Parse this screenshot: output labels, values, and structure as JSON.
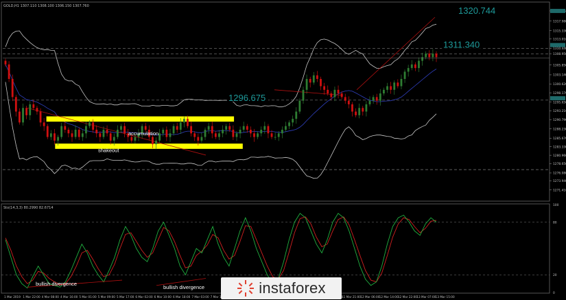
{
  "header": {
    "symbol_info": "GOLD,H1  1307.110 1308.100 1306.150 1307.760",
    "osc_info": "Sto(14,3,3) 80.2990 82.6714"
  },
  "watermark": {
    "text": "instaforex",
    "logo_icon": "instaforex-logo-icon"
  },
  "colors": {
    "background": "#000000",
    "bull_candle": "#2e7d32",
    "bear_candle": "#d01010",
    "bands": "#c8c8c8",
    "mid_band": "#3040c0",
    "zone": "#ffff00",
    "callout": "#1e9a9a",
    "trend_red": "#b01010",
    "stoch_main": "#20b040",
    "stoch_signal": "#d02020",
    "axis_text": "#c0c0c0",
    "label_text": "#ffffff"
  },
  "chart_data": [
    {
      "type": "candlestick",
      "title": "",
      "instrument": "GOLD,H1",
      "ylim": [
        1268.5,
        1323.0
      ],
      "grid": false,
      "y_ticks": [
        "1320.744",
        "1317.980",
        "1315.330",
        "1313.010",
        "1310.440",
        "1308.950",
        "1305.850",
        "1303.140",
        "1300.620",
        "1298.170",
        "1295.650",
        "1293.210",
        "1290.790",
        "1288.230",
        "1285.670",
        "1283.330",
        "1280.960",
        "1278.650",
        "1276.080",
        "1273.940",
        "1271.410"
      ],
      "x_ticks": [
        "1 Mar 2019",
        "1 Mar 22:00",
        "4 Mar 08:00",
        "4 Mar 16:00",
        "5 Mar 01:00",
        "5 Mar 09:00",
        "5 Mar 17:00",
        "6 Mar 02:00",
        "6 Mar 10:00",
        "6 Mar 18:00",
        "7 Mar 03:00",
        "7 Mar 11:00",
        "7 Mar 19:00",
        "8 Mar 04:00",
        "8 Mar 12:00",
        "8 Mar 20:00",
        "11 Mar 05:00",
        "11 Mar 13:00",
        "11 Mar 21:00",
        "12 Mar 06:00",
        "12 Mar 14:00",
        "12 Mar 22:00",
        "13 Mar 07:00",
        "13 Mar 15:00"
      ],
      "highlighted_levels": [
        {
          "label": "1320.744",
          "value": 1320.744
        },
        {
          "label": "1311.340",
          "value": 1311.34
        },
        {
          "label": "1296.675",
          "value": 1296.675
        }
      ],
      "horizontal_lines": [
        1310.44,
        1308.95,
        1296.15,
        1277.0
      ],
      "current_price": 1307.76,
      "zones": [
        {
          "y1": 1290.6,
          "y2": 1291.3,
          "x_from": 0.1,
          "x_to": 0.53
        },
        {
          "y1": 1283.1,
          "y2": 1283.8,
          "x_from": 0.12,
          "x_to": 0.55
        }
      ],
      "annotations": [
        "accumulation",
        "shakeout"
      ],
      "series_close": [
        1306,
        1302,
        1297,
        1293,
        1290,
        1294,
        1292,
        1295,
        1294,
        1293,
        1290,
        1289,
        1286,
        1287,
        1285,
        1286,
        1289,
        1288,
        1287,
        1286,
        1288,
        1286,
        1287,
        1289,
        1290,
        1288,
        1287,
        1286,
        1288,
        1287,
        1285,
        1286,
        1288,
        1289,
        1287,
        1286,
        1285,
        1286,
        1287,
        1289,
        1288,
        1286,
        1284,
        1285,
        1287,
        1288,
        1286,
        1287,
        1289,
        1288,
        1290,
        1291,
        1289,
        1287,
        1286,
        1285,
        1286,
        1288,
        1289,
        1287,
        1286,
        1287,
        1288,
        1289,
        1288,
        1286,
        1287,
        1288,
        1289,
        1288,
        1287,
        1286,
        1287,
        1288,
        1289,
        1287,
        1286,
        1286,
        1287,
        1288,
        1289,
        1290,
        1291,
        1293,
        1296,
        1299,
        1302,
        1301,
        1303,
        1302,
        1300,
        1299,
        1298,
        1297,
        1299,
        1298,
        1297,
        1296,
        1295,
        1293,
        1292,
        1294,
        1293,
        1295,
        1296,
        1297,
        1296,
        1298,
        1299,
        1300,
        1299,
        1301,
        1300,
        1302,
        1304,
        1305,
        1306,
        1305,
        1307,
        1308,
        1309,
        1308,
        1309,
        1308
      ]
    },
    {
      "type": "line",
      "title": "",
      "name": "Sto(14,3,3)",
      "ylim": [
        0,
        100
      ],
      "y_ticks": [
        100,
        80,
        20,
        0
      ],
      "annotations": [
        "bullish divergence",
        "bullish divergence"
      ],
      "series": [
        {
          "name": "main",
          "values": [
            60,
            40,
            20,
            10,
            5,
            18,
            30,
            20,
            10,
            8,
            6,
            12,
            25,
            40,
            55,
            45,
            30,
            20,
            12,
            25,
            40,
            60,
            75,
            65,
            50,
            40,
            35,
            50,
            70,
            80,
            65,
            50,
            30,
            20,
            35,
            50,
            45,
            60,
            75,
            55,
            40,
            30,
            50,
            70,
            85,
            70,
            50,
            35,
            20,
            10,
            15,
            35,
            60,
            80,
            90,
            85,
            70,
            55,
            45,
            60,
            80,
            90,
            85,
            70,
            50,
            30,
            15,
            8,
            12,
            30,
            55,
            75,
            85,
            88,
            80,
            70,
            65,
            78,
            85,
            80
          ]
        },
        {
          "name": "signal",
          "values": [
            62,
            48,
            30,
            18,
            10,
            14,
            24,
            22,
            16,
            12,
            9,
            10,
            18,
            30,
            45,
            48,
            38,
            27,
            18,
            20,
            32,
            50,
            66,
            68,
            58,
            48,
            40,
            45,
            60,
            74,
            70,
            58,
            42,
            28,
            30,
            42,
            47,
            54,
            66,
            62,
            48,
            38,
            42,
            58,
            76,
            75,
            60,
            45,
            30,
            18,
            15,
            25,
            46,
            68,
            84,
            86,
            78,
            63,
            52,
            55,
            70,
            83,
            86,
            77,
            60,
            42,
            25,
            14,
            12,
            22,
            42,
            63,
            78,
            85,
            83,
            75,
            68,
            73,
            81,
            82
          ]
        }
      ]
    }
  ]
}
